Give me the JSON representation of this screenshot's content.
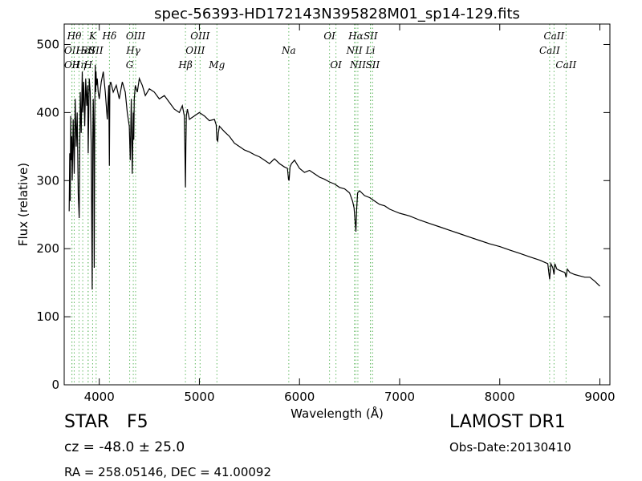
{
  "chart_data": {
    "type": "line",
    "title": "spec-56393-HD172143N395828M01_sp14-129.fits",
    "xlabel": "Wavelength (Å)",
    "ylabel": "Flux (relative)",
    "xlim": [
      3650,
      9100
    ],
    "ylim": [
      0,
      530
    ],
    "xticks": [
      4000,
      5000,
      6000,
      7000,
      8000,
      9000
    ],
    "yticks": [
      0,
      100,
      200,
      300,
      400,
      500
    ],
    "grid": false,
    "line_color": "#000000",
    "marker_color": "#66bb66",
    "series": [
      {
        "x": [
          3700,
          3705,
          3710,
          3715,
          3720,
          3725,
          3730,
          3740,
          3750,
          3760,
          3770,
          3780,
          3790,
          3800,
          3810,
          3820,
          3830,
          3835,
          3845,
          3855,
          3865,
          3875,
          3885,
          3890,
          3900,
          3910,
          3920,
          3930,
          3935,
          3940,
          3945,
          3950,
          3955,
          3960,
          3965,
          3968,
          3972,
          3980,
          3990,
          4000,
          4020,
          4040,
          4060,
          4080,
          4095,
          4101,
          4106,
          4115,
          4140,
          4170,
          4200,
          4230,
          4260,
          4280,
          4300,
          4310,
          4320,
          4330,
          4340,
          4345,
          4350,
          4360,
          4380,
          4400,
          4430,
          4460,
          4500,
          4550,
          4600,
          4650,
          4700,
          4750,
          4800,
          4830,
          4850,
          4855,
          4861,
          4865,
          4870,
          4880,
          4900,
          4950,
          5000,
          5050,
          5100,
          5150,
          5168,
          5175,
          5183,
          5190,
          5200,
          5250,
          5300,
          5350,
          5400,
          5450,
          5500,
          5550,
          5600,
          5650,
          5700,
          5750,
          5800,
          5850,
          5880,
          5890,
          5896,
          5905,
          5920,
          5950,
          6000,
          6050,
          6100,
          6150,
          6200,
          6250,
          6300,
          6350,
          6400,
          6450,
          6500,
          6530,
          6545,
          6555,
          6563,
          6570,
          6580,
          6600,
          6650,
          6700,
          6750,
          6800,
          6850,
          6900,
          6950,
          7000,
          7100,
          7200,
          7300,
          7400,
          7500,
          7600,
          7700,
          7800,
          7900,
          8000,
          8100,
          8200,
          8300,
          8400,
          8480,
          8498,
          8510,
          8530,
          8542,
          8550,
          8570,
          8600,
          8650,
          8662,
          8675,
          8700,
          8750,
          8800,
          8850,
          8900,
          8950,
          9000
        ],
        "y": [
          255,
          340,
          270,
          395,
          330,
          365,
          300,
          390,
          310,
          420,
          350,
          400,
          280,
          245,
          430,
          370,
          460,
          400,
          445,
          380,
          450,
          410,
          440,
          340,
          450,
          430,
          350,
          140,
          360,
          420,
          380,
          172,
          400,
          470,
          430,
          460,
          440,
          450,
          430,
          420,
          445,
          460,
          430,
          390,
          440,
          322,
          440,
          445,
          430,
          440,
          420,
          445,
          430,
          400,
          380,
          330,
          420,
          310,
          400,
          360,
          420,
          440,
          430,
          450,
          440,
          425,
          435,
          430,
          420,
          425,
          415,
          405,
          400,
          410,
          395,
          355,
          290,
          350,
          395,
          405,
          390,
          395,
          400,
          395,
          388,
          390,
          382,
          360,
          358,
          370,
          380,
          372,
          365,
          355,
          350,
          345,
          342,
          338,
          335,
          330,
          325,
          332,
          325,
          320,
          318,
          302,
          300,
          320,
          325,
          330,
          318,
          312,
          315,
          310,
          305,
          302,
          298,
          295,
          290,
          288,
          282,
          270,
          260,
          240,
          225,
          255,
          282,
          285,
          278,
          275,
          270,
          265,
          263,
          258,
          255,
          252,
          248,
          242,
          237,
          232,
          227,
          222,
          217,
          212,
          207,
          203,
          198,
          193,
          188,
          183,
          178,
          155,
          178,
          172,
          162,
          178,
          170,
          168,
          165,
          158,
          170,
          165,
          162,
          160,
          158,
          158,
          152,
          145
        ]
      }
    ],
    "emission_lines": [
      {
        "x": 3727,
        "label": "OII",
        "row": 1
      },
      {
        "x": 3727,
        "label": "OII",
        "row": 2
      },
      {
        "x": 3750,
        "label": "Hθ",
        "row": 0
      },
      {
        "x": 3798,
        "label": "Hη",
        "row": 2
      },
      {
        "x": 3835,
        "label": "Hε",
        "row": 1
      },
      {
        "x": 3889,
        "label": "SII",
        "row": 1
      },
      {
        "x": 3889,
        "label": "H",
        "row": 2
      },
      {
        "x": 3934,
        "label": "K",
        "row": 0
      },
      {
        "x": 3969,
        "label": "SII",
        "row": 1
      },
      {
        "x": 4102,
        "label": "Hδ",
        "row": 0
      },
      {
        "x": 4304,
        "label": "G",
        "row": 2
      },
      {
        "x": 4340,
        "label": "Hγ",
        "row": 1
      },
      {
        "x": 4363,
        "label": "OIII",
        "row": 0
      },
      {
        "x": 4861,
        "label": "Hβ",
        "row": 2
      },
      {
        "x": 4959,
        "label": "OIII",
        "row": 1
      },
      {
        "x": 5007,
        "label": "OIII",
        "row": 0
      },
      {
        "x": 5175,
        "label": "Mg",
        "row": 2
      },
      {
        "x": 5893,
        "label": "Na",
        "row": 1
      },
      {
        "x": 6300,
        "label": "OI",
        "row": 0
      },
      {
        "x": 6364,
        "label": "OI",
        "row": 2
      },
      {
        "x": 6548,
        "label": "NII",
        "row": 1
      },
      {
        "x": 6563,
        "label": "Hα",
        "row": 0
      },
      {
        "x": 6583,
        "label": "NII",
        "row": 2
      },
      {
        "x": 6710,
        "label": "SII",
        "row": 0
      },
      {
        "x": 6708,
        "label": "Li",
        "row": 1
      },
      {
        "x": 6731,
        "label": "SII",
        "row": 2
      },
      {
        "x": 8498,
        "label": "CaII",
        "row": 1
      },
      {
        "x": 8542,
        "label": "CaII",
        "row": 0
      },
      {
        "x": 8662,
        "label": "CaII",
        "row": 2
      }
    ]
  },
  "info": {
    "object_class": "STAR",
    "subclass": "F5",
    "survey": "LAMOST DR1",
    "redshift": "cz = -48.0 ± 25.0",
    "obs_date": "Obs-Date:20130410",
    "coords": "RA = 258.05146, DEC = 41.00092"
  }
}
